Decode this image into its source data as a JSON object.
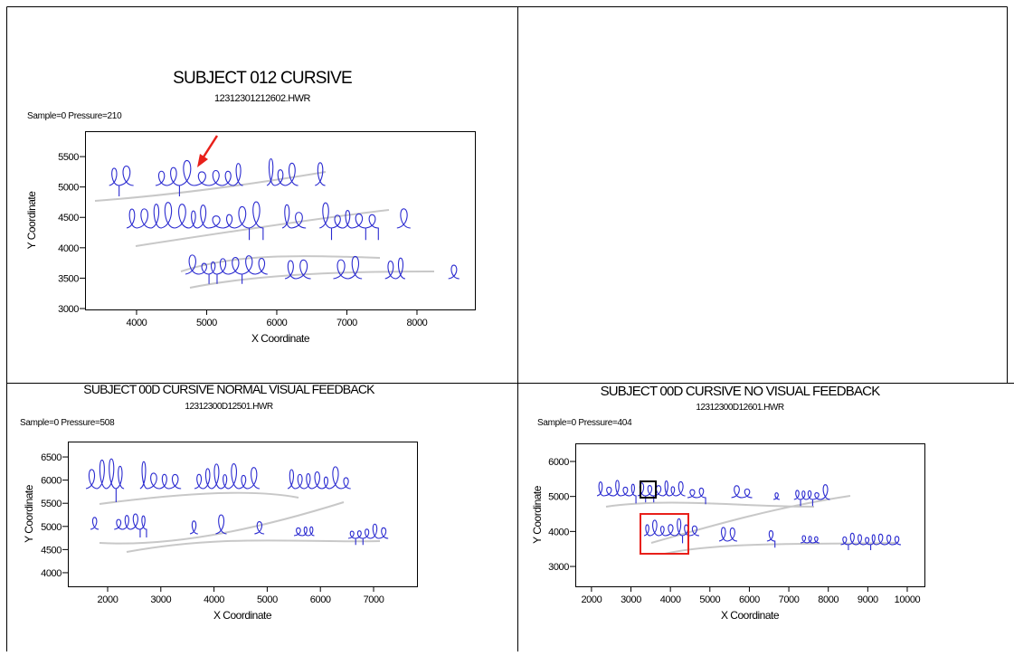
{
  "chart_data": [
    {
      "type": "handwriting",
      "title": "SUBJECT 012 CURSIVE",
      "subtitle": "12312301212602.HWR",
      "annotation": "Sample=0 Pressure=210",
      "x_label": "X Coordinate",
      "y_label": "Y Coordinate",
      "xlim": [
        3265,
        8826
      ],
      "ylim": [
        2985,
        5918
      ],
      "xticks": [
        4000,
        5000,
        6000,
        7000,
        8000
      ],
      "yticks": [
        3000,
        3500,
        4000,
        4500,
        5000,
        5500
      ]
    },
    {
      "type": "handwriting",
      "title": "SUBJECT 00D CURSIVE NORMAL VISUAL FEEDBACK",
      "subtitle": "12312300D12501.HWR",
      "annotation": "Sample=0 Pressure=508",
      "x_label": "X Coordinate",
      "y_label": "Y Coordinate",
      "xlim": [
        1252,
        7816
      ],
      "ylim": [
        3706,
        6833
      ],
      "xticks": [
        2000,
        3000,
        4000,
        5000,
        6000,
        7000
      ],
      "yticks": [
        4000,
        4500,
        5000,
        5500,
        6000,
        6500
      ]
    },
    {
      "type": "handwriting",
      "title": "SUBJECT 00D CURSIVE NO VISUAL FEEDBACK",
      "subtitle": "12312300D12601.HWR",
      "annotation": "Sample=0 Pressure=404",
      "x_label": "X Coordinate",
      "y_label": "Y Coordinate",
      "xlim": [
        1590,
        10436
      ],
      "ylim": [
        2432,
        6517
      ],
      "xticks": [
        2000,
        3000,
        4000,
        5000,
        6000,
        7000,
        8000,
        9000,
        10000
      ],
      "yticks": [
        3000,
        4000,
        5000,
        6000
      ]
    }
  ]
}
